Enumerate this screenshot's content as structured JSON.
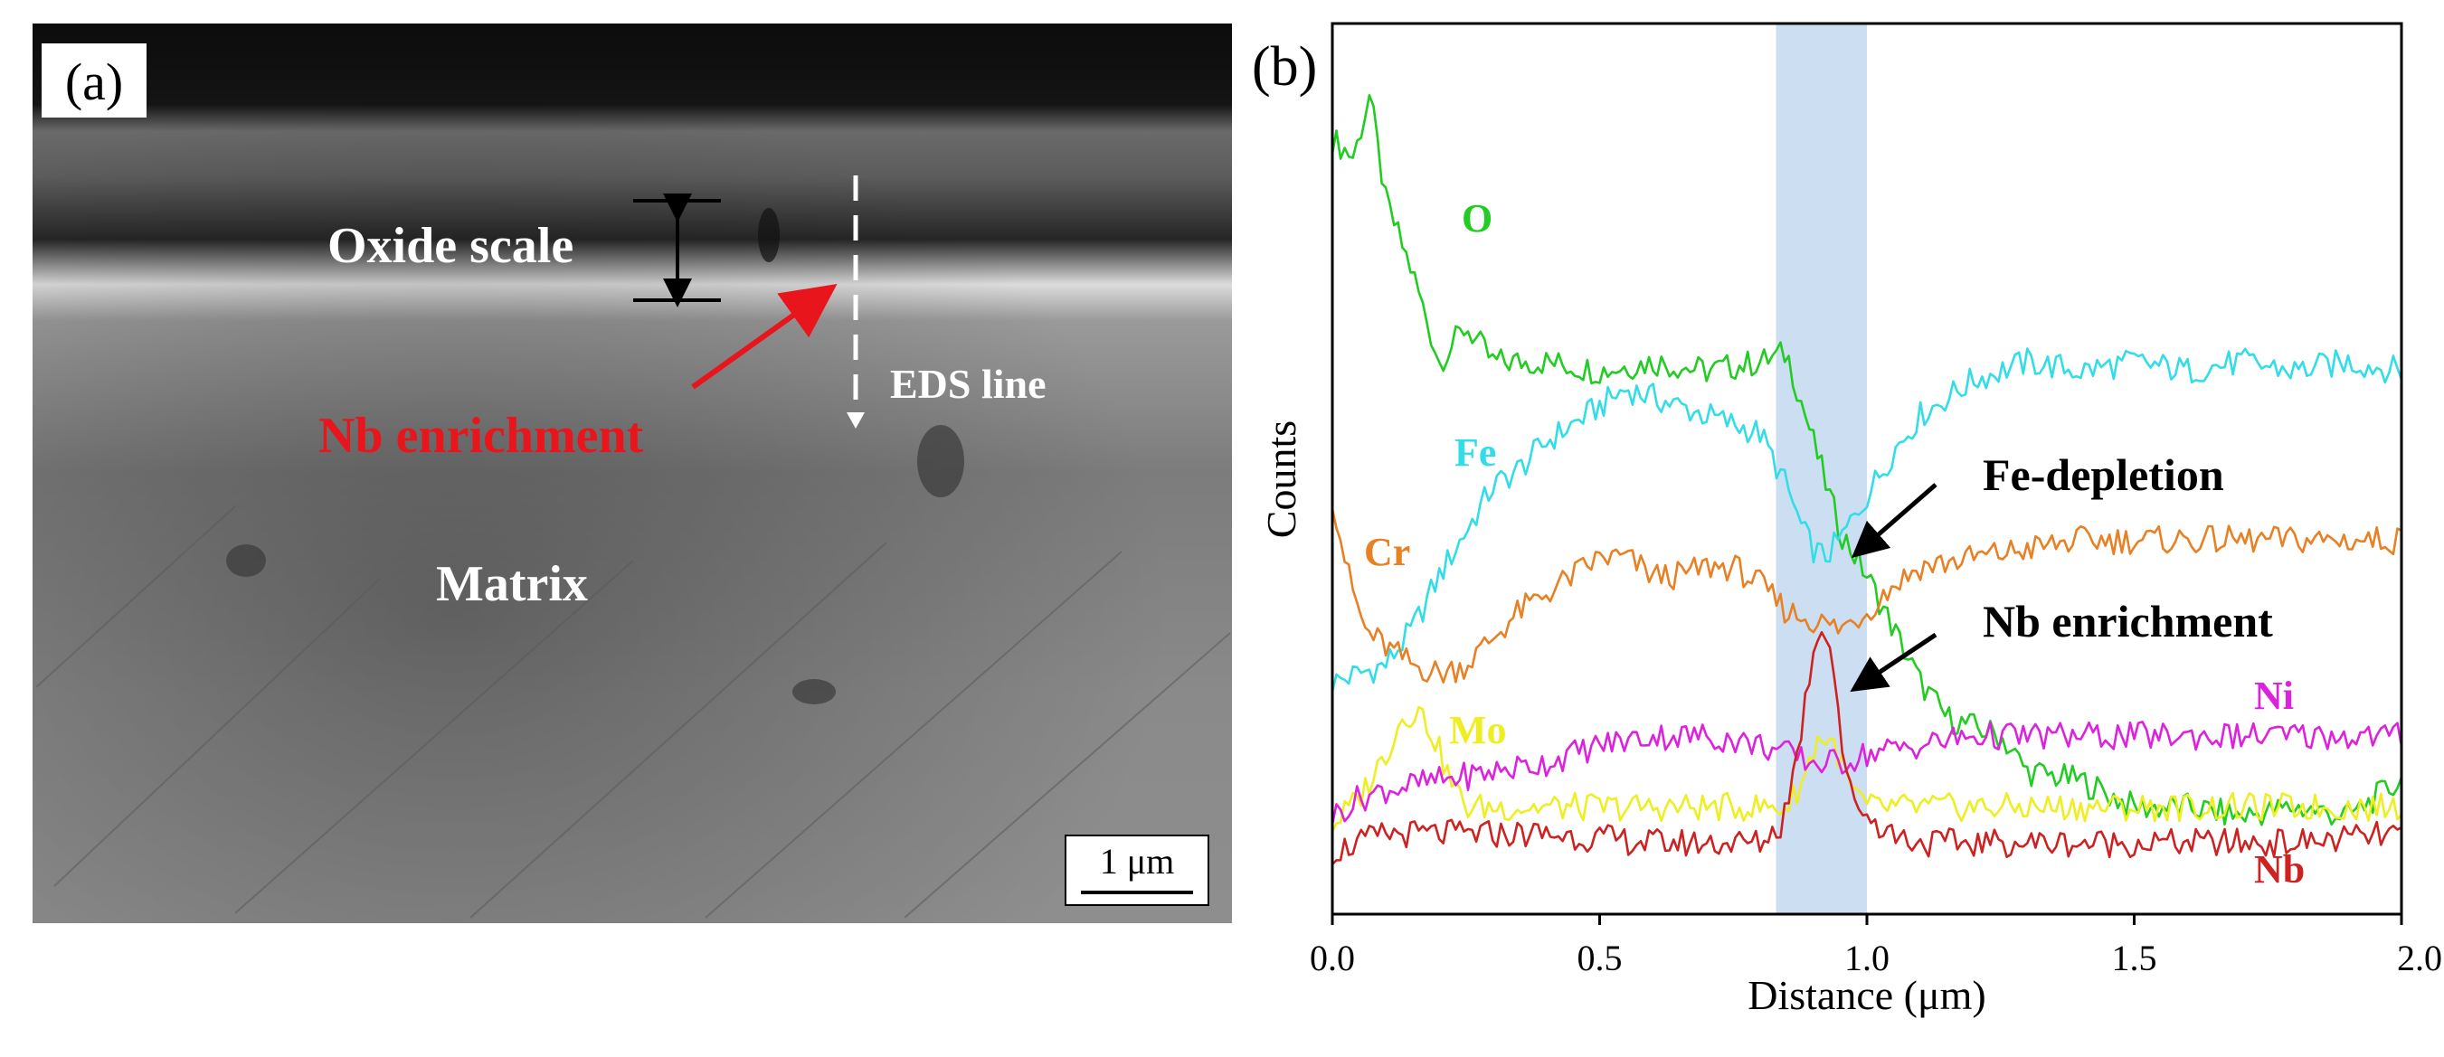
{
  "panel_a": {
    "label": "(a)",
    "oxide_label": "Oxide scale",
    "eds_label": "EDS line",
    "nb_label": "Nb enrichment",
    "matrix_label": "Matrix",
    "scale_bar_label": "1 μm",
    "colors": {
      "nb_text": "#e8161c",
      "arrow": "#e8161c",
      "text": "#ffffff"
    }
  },
  "panel_b": {
    "label": "(b)",
    "annotations": {
      "fe_depletion": "Fe-depletion",
      "nb_enrichment": "Nb enrichment"
    }
  },
  "chart_data": {
    "type": "line",
    "xlabel": "Distance (μm)",
    "ylabel": "Counts",
    "xlim": [
      0,
      2
    ],
    "ylim": [
      0,
      100
    ],
    "grid": false,
    "x_ticks": [
      "0.0",
      "0.5",
      "1.0",
      "1.5",
      "2.0"
    ],
    "x_tick_values": [
      0,
      0.5,
      1.0,
      1.5,
      2.0
    ],
    "highlight_band": [
      0.83,
      1.0
    ],
    "series": [
      {
        "name": "O",
        "color": "#22cc22",
        "x": [
          0,
          0.04,
          0.07,
          0.1,
          0.15,
          0.2,
          0.25,
          0.3,
          0.4,
          0.5,
          0.6,
          0.7,
          0.8,
          0.85,
          0.9,
          0.95,
          1.0,
          1.05,
          1.1,
          1.15,
          1.2,
          1.25,
          1.3,
          1.4,
          1.5,
          1.6,
          1.7,
          1.8,
          1.9,
          2.0
        ],
        "y": [
          87,
          85,
          92,
          80,
          72,
          62,
          66,
          62,
          62,
          61,
          62,
          61,
          62,
          63,
          53,
          43,
          38,
          32,
          26,
          22,
          21,
          20,
          16,
          15,
          12,
          12,
          11,
          12,
          11,
          15
        ]
      },
      {
        "name": "Fe",
        "color": "#33dde8",
        "x": [
          0,
          0.05,
          0.1,
          0.15,
          0.2,
          0.25,
          0.3,
          0.35,
          0.4,
          0.45,
          0.5,
          0.55,
          0.6,
          0.65,
          0.7,
          0.75,
          0.8,
          0.85,
          0.88,
          0.9,
          0.92,
          0.95,
          1.0,
          1.05,
          1.1,
          1.15,
          1.2,
          1.3,
          1.4,
          1.5,
          1.6,
          1.7,
          1.8,
          1.9,
          2.0
        ],
        "y": [
          26,
          27,
          28,
          32,
          38,
          43,
          48,
          50,
          53,
          55,
          57,
          59,
          58,
          57,
          56,
          55,
          54,
          48,
          43,
          41,
          40,
          42,
          47,
          52,
          56,
          58,
          60,
          62,
          61,
          62,
          61,
          62,
          61,
          62,
          61
        ]
      },
      {
        "name": "Cr",
        "color": "#e88024",
        "x": [
          0,
          0.03,
          0.06,
          0.1,
          0.15,
          0.2,
          0.25,
          0.3,
          0.35,
          0.4,
          0.45,
          0.5,
          0.55,
          0.6,
          0.65,
          0.7,
          0.75,
          0.8,
          0.85,
          0.9,
          0.95,
          1.0,
          1.05,
          1.1,
          1.2,
          1.3,
          1.4,
          1.5,
          1.6,
          1.7,
          1.8,
          1.9,
          2.0
        ],
        "y": [
          47,
          38,
          32,
          30,
          28,
          27,
          28,
          31,
          34,
          36,
          38,
          40,
          40,
          38,
          38,
          39,
          39,
          37,
          34,
          33,
          32,
          34,
          37,
          39,
          40,
          41,
          42,
          42,
          42,
          42,
          42,
          42,
          42
        ]
      },
      {
        "name": "Mo",
        "color": "#eeee22",
        "x": [
          0,
          0.05,
          0.1,
          0.13,
          0.16,
          0.19,
          0.22,
          0.25,
          0.3,
          0.4,
          0.5,
          0.6,
          0.7,
          0.8,
          0.85,
          0.88,
          0.91,
          0.94,
          0.97,
          1.0,
          1.1,
          1.2,
          1.4,
          1.6,
          1.8,
          2.0
        ],
        "y": [
          10,
          13,
          18,
          22,
          23,
          20,
          15,
          12,
          12,
          12,
          12,
          12,
          12,
          12,
          12,
          15,
          20,
          19,
          14,
          12,
          12,
          12,
          12,
          12,
          12,
          12
        ]
      },
      {
        "name": "Ni",
        "color": "#dd22dd",
        "x": [
          0,
          0.05,
          0.1,
          0.2,
          0.3,
          0.4,
          0.5,
          0.6,
          0.7,
          0.8,
          0.85,
          0.9,
          0.95,
          1.0,
          1.1,
          1.2,
          1.4,
          1.6,
          1.8,
          2.0
        ],
        "y": [
          11,
          13,
          14,
          15,
          16,
          17,
          19,
          20,
          20,
          19,
          18,
          17,
          17,
          18,
          19,
          20,
          20,
          20,
          20,
          20
        ]
      },
      {
        "name": "Nb",
        "color": "#cc2222",
        "x": [
          0,
          0.1,
          0.2,
          0.4,
          0.6,
          0.8,
          0.84,
          0.87,
          0.9,
          0.92,
          0.94,
          0.96,
          1.0,
          1.05,
          1.1,
          1.2,
          1.4,
          1.6,
          1.8,
          2.0
        ],
        "y": [
          7,
          9,
          9,
          9,
          8,
          8,
          10,
          18,
          30,
          33,
          27,
          15,
          11,
          9,
          8,
          8,
          8,
          8,
          8,
          9
        ]
      }
    ]
  }
}
